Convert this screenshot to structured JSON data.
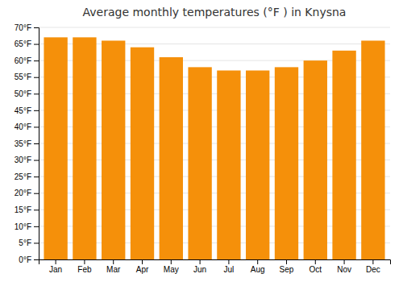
{
  "chart_data": {
    "type": "bar",
    "title": "Average monthly temperatures (°F ) in Knysna",
    "categories": [
      "Jan",
      "Feb",
      "Mar",
      "Apr",
      "May",
      "Jun",
      "Jul",
      "Aug",
      "Sep",
      "Oct",
      "Nov",
      "Dec"
    ],
    "values": [
      67,
      67,
      66,
      64,
      61,
      58,
      57,
      57,
      58,
      60,
      63,
      66
    ],
    "color": "#F5900A",
    "ylim": [
      0,
      70
    ],
    "yticks": [
      {
        "value": 0,
        "label": "0°F"
      },
      {
        "value": 5,
        "label": "5°F"
      },
      {
        "value": 10,
        "label": "10°F"
      },
      {
        "value": 15,
        "label": "15°F"
      },
      {
        "value": 20,
        "label": "20°F"
      },
      {
        "value": 25,
        "label": "25°F"
      },
      {
        "value": 30,
        "label": "30°F"
      },
      {
        "value": 35,
        "label": "35°F"
      },
      {
        "value": 40,
        "label": "40°F"
      },
      {
        "value": 45,
        "label": "45°F"
      },
      {
        "value": 50,
        "label": "50°F"
      },
      {
        "value": 55,
        "label": "55°F"
      },
      {
        "value": 60,
        "label": "60°F"
      },
      {
        "value": 65,
        "label": "65°F"
      },
      {
        "value": 70,
        "label": "70°F"
      }
    ],
    "grid": true
  }
}
